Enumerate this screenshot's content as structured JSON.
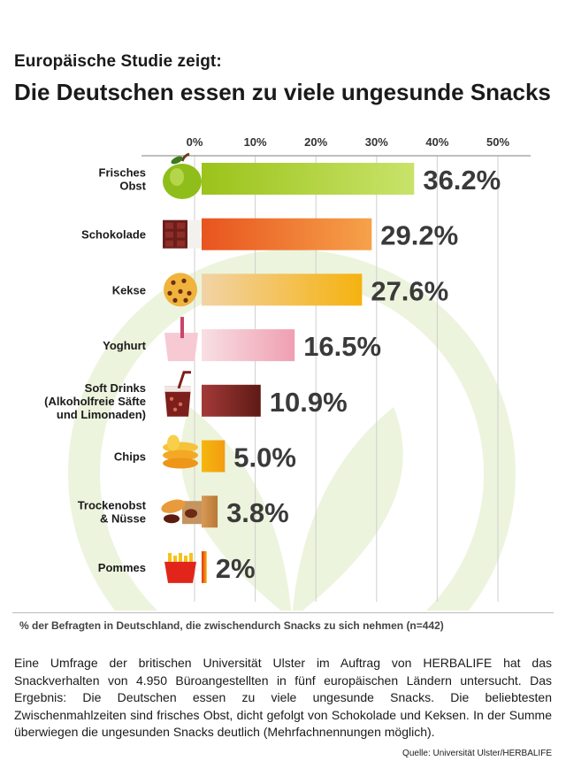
{
  "header": {
    "subtitle": "Europäische Studie zeigt:",
    "title": "Die Deutschen essen zu viele ungesunde Snacks"
  },
  "chart_data": {
    "type": "bar",
    "orientation": "horizontal",
    "x_ticks": [
      "0%",
      "10%",
      "20%",
      "30%",
      "40%",
      "50%"
    ],
    "xlim": [
      0,
      50
    ],
    "categories": [
      "Frisches Obst",
      "Schokolade",
      "Kekse",
      "Yoghurt",
      "Soft Drinks (Alkoholfreie Säfte und Limonaden)",
      "Chips",
      "Trockenobst & Nüsse",
      "Pommes"
    ],
    "category_lines": [
      [
        "Frisches",
        "Obst"
      ],
      [
        "Schokolade"
      ],
      [
        "Kekse"
      ],
      [
        "Yoghurt"
      ],
      [
        "Soft Drinks",
        "(Alkoholfreie Säfte",
        "und Limonaden)"
      ],
      [
        "Chips"
      ],
      [
        "Trockenobst",
        "& Nüsse"
      ],
      [
        "Pommes"
      ]
    ],
    "values": [
      36.2,
      29.2,
      27.6,
      16.5,
      10.9,
      5.0,
      3.8,
      2
    ],
    "value_labels": [
      "36.2%",
      "29.2%",
      "27.6%",
      "16.5%",
      "10.9%",
      "5.0%",
      "3.8%",
      "2%"
    ],
    "icons": [
      "apple-icon",
      "chocolate-icon",
      "cookie-icon",
      "yoghurt-icon",
      "soft-drink-icon",
      "chips-icon",
      "dried-fruit-nuts-icon",
      "fries-icon"
    ],
    "bar_colors": [
      [
        "#9bc31a",
        "#c9e36a"
      ],
      [
        "#e8541e",
        "#f6a24a"
      ],
      [
        "#f2d3a6",
        "#f5b20f"
      ],
      [
        "#f8dfe4",
        "#ef9fb1"
      ],
      [
        "#a33a38",
        "#5e1a16"
      ],
      [
        "#f5b70e",
        "#f39c12"
      ],
      [
        "#d89a55",
        "#b87935"
      ],
      [
        "#e63312",
        "#f2b10e"
      ]
    ],
    "grid": true,
    "watermark_color": "#ecf4dd"
  },
  "footnote": "% der Befragten in Deutschland, die zwischendurch Snacks zu sich nehmen (n=442)",
  "body": {
    "text": "Eine Umfrage der britischen Universität Ulster im Auftrag von HERBALIFE hat das Snackverhalten von 4.950 Büroangestellten in fünf europäischen Ländern untersucht. Das Ergebnis: Die Deutschen essen zu viele ungesunde Snacks. Die beliebtesten Zwischenmahlzeiten sind frisches Obst, dicht gefolgt von Schokolade und Keksen. In der Summe überwiegen die ungesunden Snacks deutlich (Mehrfachnennungen möglich).",
    "source": "Quelle: Universität Ulster/HERBALIFE"
  }
}
